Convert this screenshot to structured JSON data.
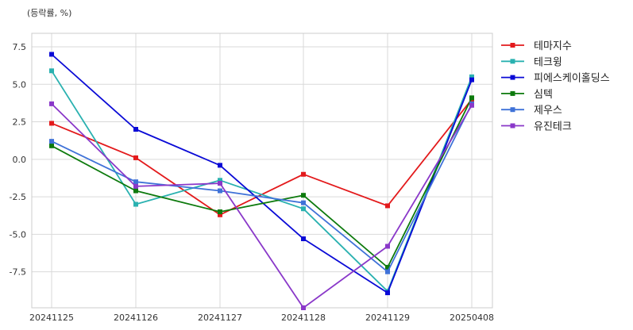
{
  "chart_data": {
    "type": "line",
    "unit_label": "(등락률, %)",
    "categories": [
      "20241125",
      "20241126",
      "20241127",
      "20241128",
      "20241129",
      "20250408"
    ],
    "yticks": [
      "7.5",
      "5.0",
      "2.5",
      "0.0",
      "-2.5",
      "-5.0",
      "-7.5"
    ],
    "ylim": [
      -9.9,
      8.4
    ],
    "grid": true,
    "legend_position": "right",
    "series": [
      {
        "name": "테마지수",
        "color": "#e31a1c",
        "values": [
          2.4,
          0.1,
          -3.7,
          -1.0,
          -3.1,
          4.0
        ]
      },
      {
        "name": "테크윙",
        "color": "#2ab1b0",
        "values": [
          5.9,
          -3.0,
          -1.4,
          -3.3,
          -8.8,
          5.5
        ]
      },
      {
        "name": "피에스케이홀딩스",
        "color": "#0a0ad6",
        "values": [
          7.0,
          2.0,
          -0.4,
          -5.3,
          -8.9,
          5.3
        ]
      },
      {
        "name": "심텍",
        "color": "#0d7a0d",
        "values": [
          0.9,
          -2.1,
          -3.5,
          -2.4,
          -7.2,
          4.1
        ]
      },
      {
        "name": "제우스",
        "color": "#3f72d8",
        "values": [
          1.2,
          -1.5,
          -2.1,
          -2.9,
          -7.5,
          3.7
        ]
      },
      {
        "name": "유진테크",
        "color": "#8a38c9",
        "values": [
          3.7,
          -1.8,
          -1.6,
          -9.9,
          -5.8,
          3.6
        ]
      }
    ]
  }
}
